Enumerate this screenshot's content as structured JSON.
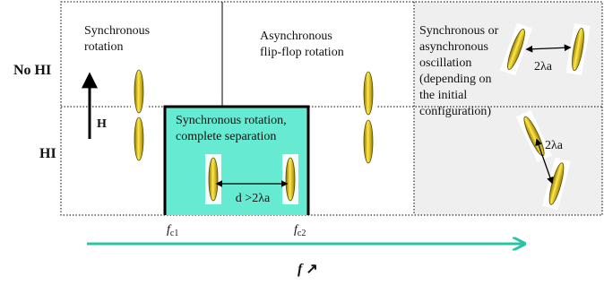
{
  "row_labels": [
    "No HI",
    "HI"
  ],
  "regions": [
    {
      "label": [
        "Synchronous",
        "rotation"
      ]
    },
    {
      "label": [
        "Asynchronous",
        "flip-flop rotation"
      ]
    },
    {
      "label": [
        "Synchronous rotation,",
        "complete separation"
      ]
    },
    {
      "label": [
        "Synchronous or",
        "asynchronous",
        "oscillation",
        "(depending on",
        "the initial",
        "configuration)"
      ]
    }
  ],
  "field_label": "H",
  "distance_labels": [
    "d >2λa",
    "2λa",
    "2λa"
  ],
  "thresholds": [
    {
      "symbol": "f",
      "subscript": "c1"
    },
    {
      "symbol": "f",
      "subscript": "c2"
    }
  ],
  "axis": {
    "symbol": "f",
    "arrow": "↗"
  }
}
